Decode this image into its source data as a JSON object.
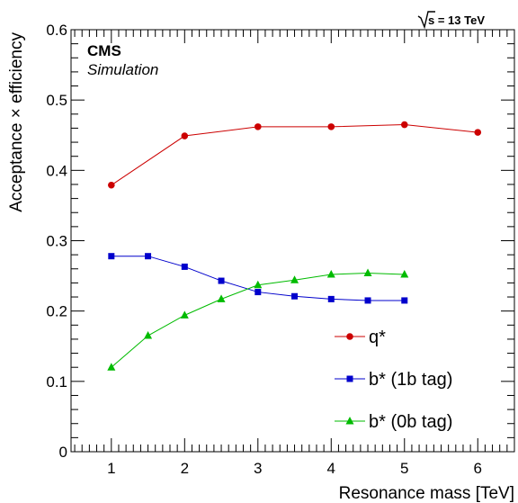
{
  "header": {
    "energy_label": "s = 13 TeV",
    "cms_label": "CMS",
    "sim_label": "Simulation"
  },
  "colors": {
    "q_star": "#cc0000",
    "b_star_1b": "#0000cc",
    "b_star_0b": "#00bb00"
  },
  "chart_data": {
    "type": "line",
    "xlabel": "Resonance mass [TeV]",
    "ylabel": "Acceptance × efficiency",
    "xlim": [
      0.45,
      6.5
    ],
    "ylim": [
      0,
      0.6
    ],
    "x_ticks": [
      1,
      2,
      3,
      4,
      5,
      6
    ],
    "x_tick_labels": [
      "1",
      "2",
      "3",
      "4",
      "5",
      "6"
    ],
    "y_ticks": [
      0,
      0.1,
      0.2,
      0.3,
      0.4,
      0.5,
      0.6
    ],
    "y_tick_labels": [
      "0",
      "0.1",
      "0.2",
      "0.3",
      "0.4",
      "0.5",
      "0.6"
    ],
    "grid": false,
    "legend_position": "bottom-right",
    "series": [
      {
        "name": "q*",
        "marker": "circle",
        "color": "#cc0000",
        "x": [
          1,
          2,
          3,
          4,
          5,
          6
        ],
        "y": [
          0.379,
          0.449,
          0.462,
          0.462,
          0.465,
          0.454
        ]
      },
      {
        "name": "b* (1b tag)",
        "marker": "square",
        "color": "#0000cc",
        "x": [
          1,
          1.5,
          2,
          2.5,
          3,
          3.5,
          4,
          4.5,
          5
        ],
        "y": [
          0.278,
          0.278,
          0.263,
          0.243,
          0.227,
          0.221,
          0.217,
          0.215,
          0.215
        ]
      },
      {
        "name": "b* (0b tag)",
        "marker": "triangle",
        "color": "#00bb00",
        "x": [
          1,
          1.5,
          2,
          2.5,
          3,
          3.5,
          4,
          4.5,
          5
        ],
        "y": [
          0.12,
          0.165,
          0.194,
          0.217,
          0.237,
          0.244,
          0.252,
          0.254,
          0.252
        ]
      }
    ]
  }
}
